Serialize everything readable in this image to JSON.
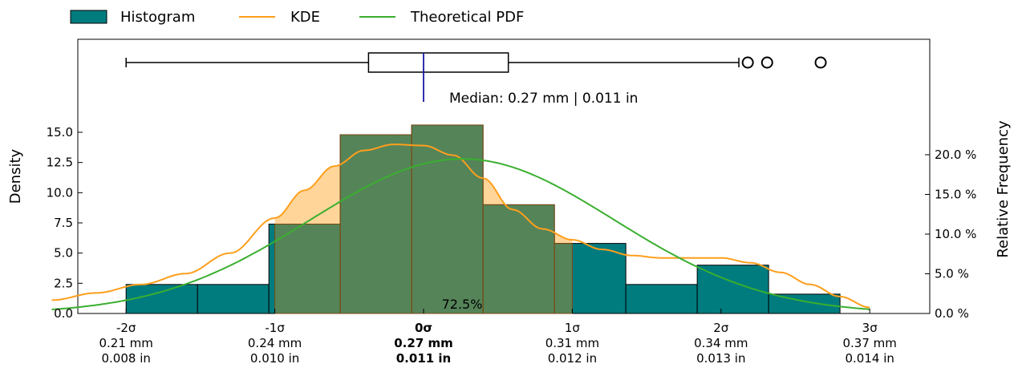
{
  "chart_data": {
    "type": "histogram",
    "legend": {
      "placement": "top",
      "entries": [
        {
          "label": "Histogram",
          "color": "#007c7f",
          "kind": "patch"
        },
        {
          "label": "KDE",
          "color": "#ff9f1c",
          "kind": "line"
        },
        {
          "label": "Theoretical PDF",
          "color": "#3aaf2f",
          "kind": "line"
        }
      ]
    },
    "y_left": {
      "label": "Density",
      "lim": [
        0,
        17.6
      ],
      "ticks": [
        "0.0",
        "2.5",
        "5.0",
        "7.5",
        "10.0",
        "12.5",
        "15.0"
      ],
      "tick_values": [
        0,
        2.5,
        5,
        7.5,
        10,
        12.5,
        15
      ]
    },
    "y_right": {
      "label": "Relative Frequency",
      "ticks": [
        "0.0 %",
        "5.0 %",
        "10.0 %",
        "15.0 %",
        "20.0 %"
      ],
      "tick_values": [
        0,
        5,
        10,
        15,
        20
      ]
    },
    "x_axis": {
      "lim": [
        -2.53,
        3.2
      ],
      "ticks": [
        {
          "sigma": -2,
          "sigma_label": "-2σ",
          "mm": "0.21 mm",
          "inch": "0.008 in",
          "bold": false
        },
        {
          "sigma": -1,
          "sigma_label": "-1σ",
          "mm": "0.24 mm",
          "inch": "0.010 in",
          "bold": false
        },
        {
          "sigma": 0,
          "sigma_label": "0σ",
          "mm": "0.27 mm",
          "inch": "0.011 in",
          "bold": true
        },
        {
          "sigma": 1,
          "sigma_label": "1σ",
          "mm": "0.31 mm",
          "inch": "0.012 in",
          "bold": false
        },
        {
          "sigma": 2,
          "sigma_label": "2σ",
          "mm": "0.34 mm",
          "inch": "0.013 in",
          "bold": false
        },
        {
          "sigma": 3,
          "sigma_label": "3σ",
          "mm": "0.37 mm",
          "inch": "0.014 in",
          "bold": false
        }
      ]
    },
    "bins": [
      {
        "x0": -2.0,
        "x1": -1.52,
        "density": 2.4
      },
      {
        "x0": -1.52,
        "x1": -1.04,
        "density": 2.4
      },
      {
        "x0": -1.04,
        "x1": -0.56,
        "density": 7.4
      },
      {
        "x0": -0.56,
        "x1": -0.08,
        "density": 14.8
      },
      {
        "x0": -0.08,
        "x1": 0.4,
        "density": 15.6
      },
      {
        "x0": 0.4,
        "x1": 0.88,
        "density": 9.0
      },
      {
        "x0": 0.88,
        "x1": 1.36,
        "density": 5.8
      },
      {
        "x0": 1.36,
        "x1": 1.84,
        "density": 2.4
      },
      {
        "x0": 1.84,
        "x1": 2.32,
        "density": 4.0
      },
      {
        "x0": 2.32,
        "x1": 2.8,
        "density": 1.6
      }
    ],
    "kde": {
      "x": [
        -2.5,
        -2.2,
        -1.9,
        -1.6,
        -1.3,
        -1.0,
        -0.8,
        -0.6,
        -0.4,
        -0.2,
        0.0,
        0.2,
        0.4,
        0.6,
        0.8,
        1.0,
        1.2,
        1.4,
        1.6,
        1.8,
        2.0,
        2.2,
        2.4,
        2.6,
        2.8,
        3.0
      ],
      "y": [
        1.1,
        1.7,
        2.4,
        3.3,
        5.0,
        7.9,
        10.2,
        12.2,
        13.5,
        14.0,
        13.9,
        13.1,
        11.2,
        8.6,
        7.0,
        6.1,
        5.3,
        4.8,
        4.6,
        4.6,
        4.6,
        4.2,
        3.4,
        2.4,
        1.4,
        0.5
      ]
    },
    "pdf": {
      "mean": 0.26,
      "sd": 1.02,
      "scale": 12.8,
      "x_range": [
        -2.5,
        3.0
      ]
    },
    "shaded_region": {
      "x_range": [
        -1.0,
        1.0
      ],
      "label": "72.5%"
    },
    "boxplot": {
      "whisker_low": -2.0,
      "q1": -0.37,
      "median": 0.0,
      "q3": 0.57,
      "whisker_high": 2.12,
      "outliers": [
        2.18,
        2.31,
        2.67
      ],
      "median_label": "Median: 0.27 mm | 0.011 in"
    }
  }
}
